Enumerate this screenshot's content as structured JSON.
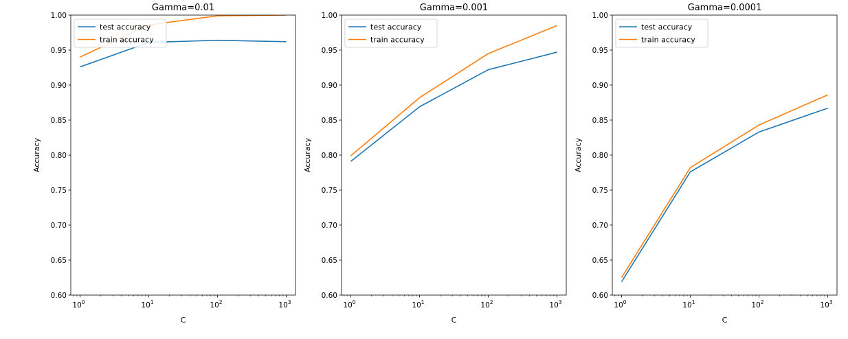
{
  "chart_data": [
    {
      "type": "line",
      "title": "Gamma=0.01",
      "xlabel": "C",
      "ylabel": "Accuracy",
      "xscale": "log",
      "x": [
        1,
        10,
        100,
        1000
      ],
      "xticks": [
        {
          "base": "10",
          "exp": "0"
        },
        {
          "base": "10",
          "exp": "1"
        },
        {
          "base": "10",
          "exp": "2"
        },
        {
          "base": "10",
          "exp": "3"
        }
      ],
      "ylim": [
        0.6,
        1.0
      ],
      "yticks": [
        "0.60",
        "0.65",
        "0.70",
        "0.75",
        "0.80",
        "0.85",
        "0.90",
        "0.95",
        "1.00"
      ],
      "legend_position": "top-left",
      "grid": false,
      "series": [
        {
          "name": "test accuracy",
          "color": "#1f77b4",
          "values": [
            0.926,
            0.961,
            0.964,
            0.962
          ]
        },
        {
          "name": "train accuracy",
          "color": "#ff7f0e",
          "values": [
            0.94,
            0.986,
            0.999,
            1.0
          ]
        }
      ]
    },
    {
      "type": "line",
      "title": "Gamma=0.001",
      "xlabel": "C",
      "ylabel": "Accuracy",
      "xscale": "log",
      "x": [
        1,
        10,
        100,
        1000
      ],
      "xticks": [
        {
          "base": "10",
          "exp": "0"
        },
        {
          "base": "10",
          "exp": "1"
        },
        {
          "base": "10",
          "exp": "2"
        },
        {
          "base": "10",
          "exp": "3"
        }
      ],
      "ylim": [
        0.6,
        1.0
      ],
      "yticks": [
        "0.60",
        "0.65",
        "0.70",
        "0.75",
        "0.80",
        "0.85",
        "0.90",
        "0.95",
        "1.00"
      ],
      "legend_position": "top-left",
      "grid": false,
      "series": [
        {
          "name": "test accuracy",
          "color": "#1f77b4",
          "values": [
            0.791,
            0.869,
            0.922,
            0.947
          ]
        },
        {
          "name": "train accuracy",
          "color": "#ff7f0e",
          "values": [
            0.799,
            0.882,
            0.945,
            0.985
          ]
        }
      ]
    },
    {
      "type": "line",
      "title": "Gamma=0.0001",
      "xlabel": "C",
      "ylabel": "Accuracy",
      "xscale": "log",
      "x": [
        1,
        10,
        100,
        1000
      ],
      "xticks": [
        {
          "base": "10",
          "exp": "0"
        },
        {
          "base": "10",
          "exp": "1"
        },
        {
          "base": "10",
          "exp": "2"
        },
        {
          "base": "10",
          "exp": "3"
        }
      ],
      "ylim": [
        0.6,
        1.0
      ],
      "yticks": [
        "0.60",
        "0.65",
        "0.70",
        "0.75",
        "0.80",
        "0.85",
        "0.90",
        "0.95",
        "1.00"
      ],
      "legend_position": "top-left",
      "grid": false,
      "series": [
        {
          "name": "test accuracy",
          "color": "#1f77b4",
          "values": [
            0.619,
            0.776,
            0.833,
            0.867
          ]
        },
        {
          "name": "train accuracy",
          "color": "#ff7f0e",
          "values": [
            0.625,
            0.782,
            0.843,
            0.886
          ]
        }
      ]
    }
  ]
}
